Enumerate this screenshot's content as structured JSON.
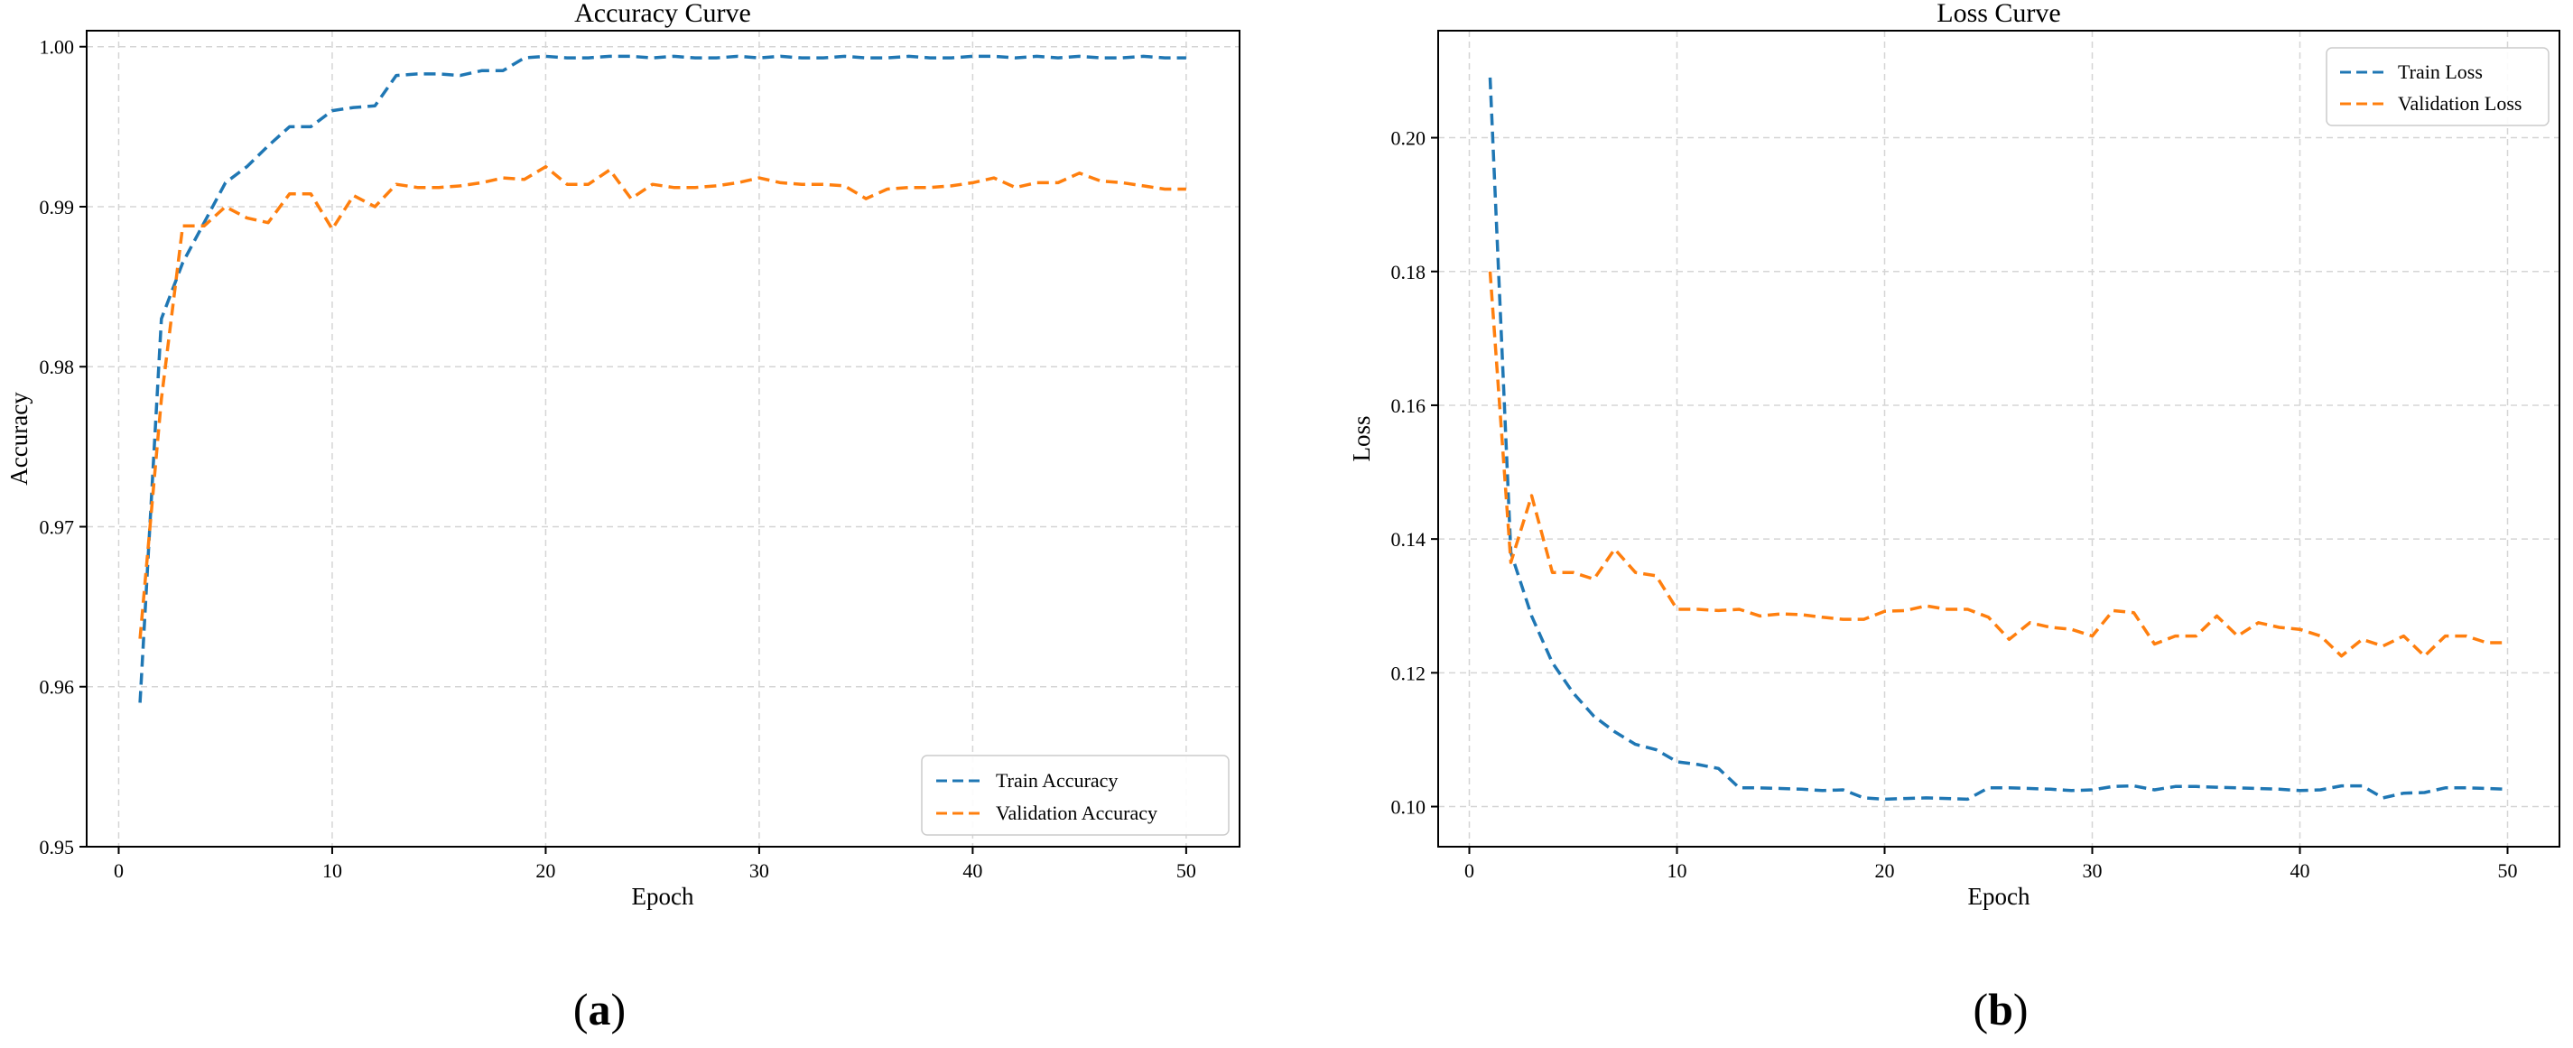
{
  "chart_data": [
    {
      "type": "line",
      "panel_label": "a",
      "title": "Accuracy Curve",
      "xlabel": "Epoch",
      "ylabel": "Accuracy",
      "xlim": [
        -1.5,
        52.5
      ],
      "ylim": [
        0.95,
        1.001
      ],
      "xticks": [
        0,
        10,
        20,
        30,
        40,
        50
      ],
      "yticks": [
        0.95,
        0.96,
        0.97,
        0.98,
        0.99,
        1.0
      ],
      "ytick_labels": [
        "0.95",
        "0.96",
        "0.97",
        "0.98",
        "0.99",
        "1.00"
      ],
      "grid": true,
      "legend_position": "lower-right",
      "x": [
        1,
        2,
        3,
        4,
        5,
        6,
        7,
        8,
        9,
        10,
        11,
        12,
        13,
        14,
        15,
        16,
        17,
        18,
        19,
        20,
        21,
        22,
        23,
        24,
        25,
        26,
        27,
        28,
        29,
        30,
        31,
        32,
        33,
        34,
        35,
        36,
        37,
        38,
        39,
        40,
        41,
        42,
        43,
        44,
        45,
        46,
        47,
        48,
        49,
        50
      ],
      "series": [
        {
          "name": "Train Accuracy",
          "color": "#1f77b4",
          "values": [
            0.959,
            0.983,
            0.9865,
            0.989,
            0.9915,
            0.9925,
            0.9938,
            0.995,
            0.995,
            0.996,
            0.9962,
            0.9963,
            0.9982,
            0.9983,
            0.9983,
            0.9982,
            0.9985,
            0.9985,
            0.9993,
            0.9994,
            0.9993,
            0.9993,
            0.9994,
            0.9994,
            0.9993,
            0.9994,
            0.9993,
            0.9993,
            0.9994,
            0.9993,
            0.9994,
            0.9993,
            0.9993,
            0.9994,
            0.9993,
            0.9993,
            0.9994,
            0.9993,
            0.9993,
            0.9994,
            0.9994,
            0.9993,
            0.9994,
            0.9993,
            0.9994,
            0.9993,
            0.9993,
            0.9994,
            0.9993,
            0.9993
          ]
        },
        {
          "name": "Validation Accuracy",
          "color": "#ff7f0e",
          "values": [
            0.963,
            0.978,
            0.9888,
            0.9888,
            0.99,
            0.9893,
            0.989,
            0.9908,
            0.9908,
            0.9886,
            0.9907,
            0.99,
            0.9914,
            0.9912,
            0.9912,
            0.9913,
            0.9915,
            0.9918,
            0.9917,
            0.9925,
            0.9914,
            0.9914,
            0.9923,
            0.9905,
            0.9914,
            0.9912,
            0.9912,
            0.9913,
            0.9915,
            0.9918,
            0.9915,
            0.9914,
            0.9914,
            0.9913,
            0.9905,
            0.9911,
            0.9912,
            0.9912,
            0.9913,
            0.9915,
            0.9918,
            0.9912,
            0.9915,
            0.9915,
            0.9921,
            0.9916,
            0.9915,
            0.9913,
            0.9911,
            0.9911
          ]
        }
      ]
    },
    {
      "type": "line",
      "panel_label": "b",
      "title": "Loss Curve",
      "xlabel": "Epoch",
      "ylabel": "Loss",
      "xlim": [
        -1.5,
        52.5
      ],
      "ylim": [
        0.094,
        0.216
      ],
      "xticks": [
        0,
        10,
        20,
        30,
        40,
        50
      ],
      "yticks": [
        0.1,
        0.12,
        0.14,
        0.16,
        0.18,
        0.2
      ],
      "ytick_labels": [
        "0.10",
        "0.12",
        "0.14",
        "0.16",
        "0.18",
        "0.20"
      ],
      "grid": true,
      "legend_position": "upper-right",
      "x": [
        1,
        2,
        3,
        4,
        5,
        6,
        7,
        8,
        9,
        10,
        11,
        12,
        13,
        14,
        15,
        16,
        17,
        18,
        19,
        20,
        21,
        22,
        23,
        24,
        25,
        26,
        27,
        28,
        29,
        30,
        31,
        32,
        33,
        34,
        35,
        36,
        37,
        38,
        39,
        40,
        41,
        42,
        43,
        44,
        45,
        46,
        47,
        48,
        49,
        50
      ],
      "series": [
        {
          "name": "Train Loss",
          "color": "#1f77b4",
          "values": [
            0.209,
            0.138,
            0.1285,
            0.1215,
            0.117,
            0.1135,
            0.1112,
            0.1093,
            0.1085,
            0.1067,
            0.1063,
            0.1057,
            0.1028,
            0.1028,
            0.1027,
            0.1026,
            0.1024,
            0.1025,
            0.1013,
            0.1011,
            0.1012,
            0.1013,
            0.1012,
            0.1011,
            0.1028,
            0.1028,
            0.1027,
            0.1026,
            0.1024,
            0.1025,
            0.103,
            0.1031,
            0.1025,
            0.103,
            0.103,
            0.1029,
            0.1028,
            0.1027,
            0.1026,
            0.1024,
            0.1025,
            0.1031,
            0.1031,
            0.1013,
            0.102,
            0.1021,
            0.1028,
            0.1028,
            0.1027,
            0.1026
          ]
        },
        {
          "name": "Validation Loss",
          "color": "#ff7f0e",
          "values": [
            0.18,
            0.1365,
            0.1465,
            0.135,
            0.135,
            0.134,
            0.1385,
            0.135,
            0.1345,
            0.1295,
            0.1295,
            0.1293,
            0.1295,
            0.1285,
            0.1288,
            0.1287,
            0.1283,
            0.128,
            0.128,
            0.1292,
            0.1293,
            0.13,
            0.1295,
            0.1295,
            0.1283,
            0.125,
            0.1275,
            0.1268,
            0.1265,
            0.1255,
            0.1293,
            0.129,
            0.1243,
            0.1255,
            0.1255,
            0.1285,
            0.1255,
            0.1275,
            0.1268,
            0.1265,
            0.1255,
            0.1225,
            0.125,
            0.124,
            0.1255,
            0.1225,
            0.1255,
            0.1255,
            0.1245,
            0.1245
          ]
        }
      ]
    }
  ]
}
